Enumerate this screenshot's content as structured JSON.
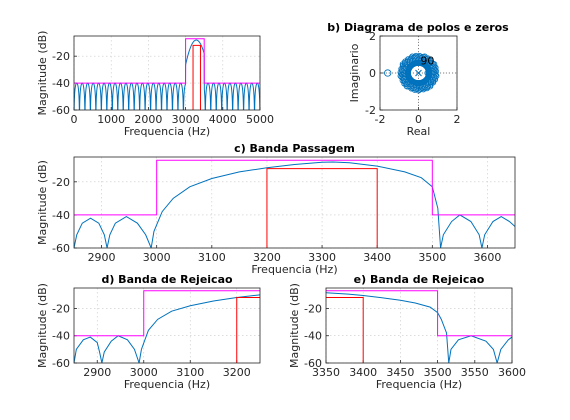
{
  "chart_data": [
    {
      "id": "a",
      "type": "line",
      "title": "",
      "xlabel": "Frequencia (Hz)",
      "ylabel": "Magnitude (dB)",
      "xlim": [
        0,
        5000
      ],
      "ylim": [
        -60,
        -5
      ],
      "xticks": [
        0,
        1000,
        2000,
        3000,
        4000,
        5000
      ],
      "yticks": [
        -60,
        -40,
        -20
      ],
      "grid": true,
      "mask_magenta": {
        "x": [
          0,
          3000,
          3000,
          3500,
          3500,
          5000
        ],
        "y": [
          -40,
          -40,
          -7,
          -7,
          -40,
          -40
        ]
      },
      "mask_red": {
        "x": [
          3200,
          3200,
          3400,
          3400
        ],
        "y": [
          -60,
          -12,
          -12,
          -60
        ]
      },
      "response": {
        "passband": [
          3000,
          3500
        ],
        "peak_db": -8,
        "stopband_max_db": -40,
        "ripple_lobes": 34
      }
    },
    {
      "id": "b",
      "type": "scatter",
      "title": "b) Diagrama de polos e zeros",
      "xlabel": "Real",
      "ylabel": "Imaginario",
      "xlim": [
        -2,
        2
      ],
      "ylim": [
        -2,
        2
      ],
      "xticks": [
        -2,
        0,
        2
      ],
      "yticks": [
        -2,
        0,
        2
      ],
      "grid": true,
      "zeros_on_unit_circle": 90,
      "extra_zeros_real": [
        -1.6,
        0.5
      ],
      "pole_marker": "x at origin",
      "annotation": "90"
    },
    {
      "id": "c",
      "type": "line",
      "title": "c) Banda Passagem",
      "xlabel": "Frequencia (Hz)",
      "ylabel": "Magnitude (dB)",
      "xlim": [
        2850,
        3650
      ],
      "ylim": [
        -60,
        -5
      ],
      "xticks": [
        2900,
        3000,
        3100,
        3200,
        3300,
        3400,
        3500,
        3600
      ],
      "yticks": [
        -60,
        -40,
        -20
      ],
      "grid": true,
      "mask_magenta": {
        "x": [
          2850,
          3000,
          3000,
          3500,
          3500,
          3650
        ],
        "y": [
          -40,
          -40,
          -7,
          -7,
          -40,
          -40
        ]
      },
      "mask_red": {
        "x": [
          3200,
          3200,
          3400,
          3400
        ],
        "y": [
          -60,
          -12,
          -12,
          -60
        ]
      },
      "response_points": [
        [
          2850,
          -60
        ],
        [
          2855,
          -52
        ],
        [
          2865,
          -45
        ],
        [
          2880,
          -42
        ],
        [
          2895,
          -45
        ],
        [
          2905,
          -52
        ],
        [
          2910,
          -60
        ],
        [
          2915,
          -52
        ],
        [
          2925,
          -45
        ],
        [
          2945,
          -41
        ],
        [
          2965,
          -45
        ],
        [
          2980,
          -52
        ],
        [
          2990,
          -60
        ],
        [
          2995,
          -50
        ],
        [
          3010,
          -38
        ],
        [
          3030,
          -30
        ],
        [
          3060,
          -23
        ],
        [
          3100,
          -18
        ],
        [
          3150,
          -14
        ],
        [
          3200,
          -11.5
        ],
        [
          3250,
          -9.5
        ],
        [
          3300,
          -8.2
        ],
        [
          3320,
          -8
        ],
        [
          3350,
          -8.5
        ],
        [
          3400,
          -10.5
        ],
        [
          3450,
          -14
        ],
        [
          3480,
          -17.5
        ],
        [
          3500,
          -23
        ],
        [
          3510,
          -36
        ],
        [
          3515,
          -60
        ],
        [
          3520,
          -52
        ],
        [
          3535,
          -44
        ],
        [
          3550,
          -40
        ],
        [
          3570,
          -44
        ],
        [
          3585,
          -52
        ],
        [
          3590,
          -60
        ],
        [
          3595,
          -52
        ],
        [
          3610,
          -44
        ],
        [
          3625,
          -41
        ],
        [
          3640,
          -44
        ],
        [
          3650,
          -47
        ]
      ]
    },
    {
      "id": "d",
      "type": "line",
      "title": "d) Banda de Rejeicao",
      "xlabel": "Frequencia (Hz)",
      "ylabel": "Magnitude (dB)",
      "xlim": [
        2850,
        3250
      ],
      "ylim": [
        -60,
        -5
      ],
      "xticks": [
        2900,
        3000,
        3100,
        3200
      ],
      "yticks": [
        -60,
        -40,
        -20
      ],
      "grid": true,
      "mask_magenta": {
        "x": [
          2850,
          3000,
          3000,
          3250
        ],
        "y": [
          -40,
          -40,
          -7,
          -7
        ]
      },
      "mask_red": {
        "x": [
          3200,
          3200,
          3250
        ],
        "y": [
          -60,
          -12,
          -12
        ]
      },
      "response_points": [
        [
          2850,
          -60
        ],
        [
          2855,
          -50
        ],
        [
          2870,
          -43
        ],
        [
          2885,
          -41
        ],
        [
          2900,
          -45
        ],
        [
          2905,
          -52
        ],
        [
          2910,
          -60
        ],
        [
          2915,
          -52
        ],
        [
          2930,
          -44
        ],
        [
          2945,
          -40
        ],
        [
          2965,
          -43
        ],
        [
          2980,
          -50
        ],
        [
          2990,
          -60
        ],
        [
          2995,
          -50
        ],
        [
          3010,
          -36
        ],
        [
          3030,
          -28
        ],
        [
          3060,
          -22
        ],
        [
          3100,
          -18
        ],
        [
          3150,
          -14.5
        ],
        [
          3200,
          -12
        ],
        [
          3250,
          -10
        ]
      ]
    },
    {
      "id": "e",
      "type": "line",
      "title": "e) Banda de Rejeicao",
      "xlabel": "Frequencia (Hz)",
      "ylabel": "Magnitude (dB)",
      "xlim": [
        3350,
        3600
      ],
      "ylim": [
        -60,
        -5
      ],
      "xticks": [
        3350,
        3400,
        3450,
        3500,
        3550,
        3600
      ],
      "yticks": [
        -60,
        -40,
        -20
      ],
      "grid": true,
      "mask_magenta": {
        "x": [
          3350,
          3500,
          3500,
          3600
        ],
        "y": [
          -7,
          -7,
          -40,
          -40
        ]
      },
      "mask_red": {
        "x": [
          3350,
          3400,
          3400
        ],
        "y": [
          -12,
          -12,
          -60
        ]
      },
      "response_points": [
        [
          3350,
          -8.5
        ],
        [
          3380,
          -9.5
        ],
        [
          3400,
          -10.5
        ],
        [
          3430,
          -12.5
        ],
        [
          3450,
          -14
        ],
        [
          3470,
          -16
        ],
        [
          3490,
          -19
        ],
        [
          3500,
          -23
        ],
        [
          3505,
          -28
        ],
        [
          3512,
          -38
        ],
        [
          3515,
          -60
        ],
        [
          3518,
          -50
        ],
        [
          3528,
          -43
        ],
        [
          3545,
          -40
        ],
        [
          3565,
          -44
        ],
        [
          3575,
          -50
        ],
        [
          3580,
          -60
        ],
        [
          3585,
          -50
        ],
        [
          3595,
          -43
        ],
        [
          3600,
          -41
        ]
      ]
    }
  ]
}
